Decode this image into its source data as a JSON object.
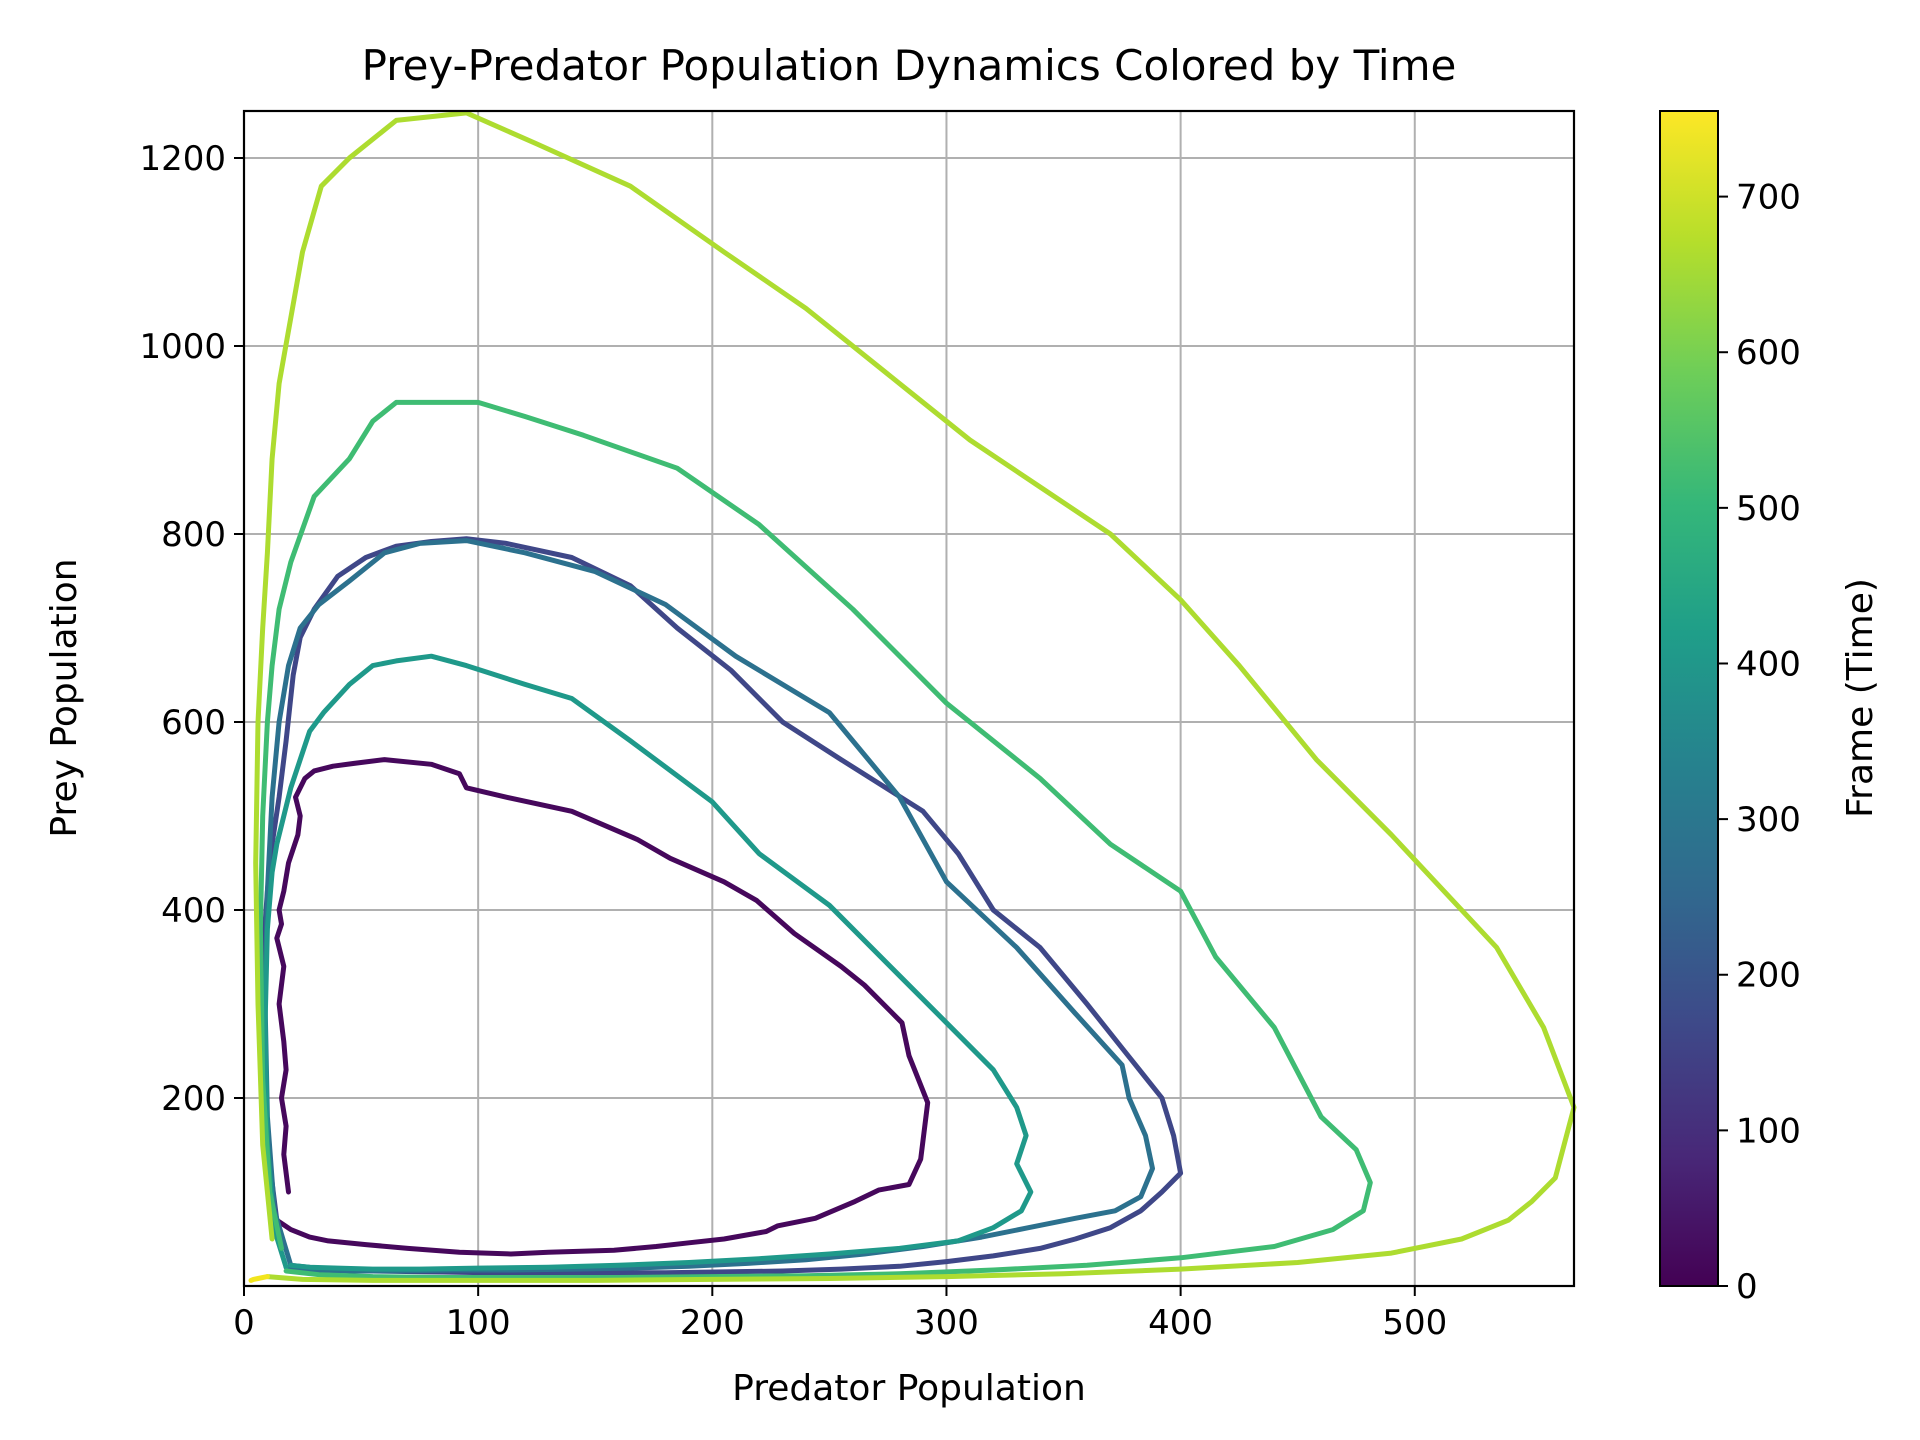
{
  "chart_data": {
    "type": "line",
    "title": "Prey-Predator Population Dynamics Colored by Time",
    "xlabel": "Predator Population",
    "ylabel": "Prey Population",
    "xlim": [
      0,
      568
    ],
    "ylim": [
      0,
      1250
    ],
    "xticks": [
      0,
      100,
      200,
      300,
      400,
      500
    ],
    "yticks": [
      200,
      400,
      600,
      800,
      1000,
      1200
    ],
    "grid": true,
    "colorbar": {
      "label": "Frame (Time)",
      "range": [
        0,
        755
      ],
      "ticks": [
        0,
        100,
        200,
        300,
        400,
        500,
        600,
        700
      ],
      "colormap": "viridis",
      "stops": [
        "#440154",
        "#482878",
        "#3e4989",
        "#31688e",
        "#26828e",
        "#1f9e89",
        "#35b779",
        "#6ece58",
        "#b5de2b",
        "#fde725"
      ]
    },
    "series": [
      {
        "frame_start": 0,
        "frame_end": 95,
        "color": "#46085c",
        "x": [
          19,
          17,
          18,
          16,
          18,
          17,
          15,
          17,
          14,
          16,
          15,
          17,
          19,
          23,
          24,
          22,
          26,
          30,
          38,
          47,
          60,
          80,
          92,
          95,
          112,
          140,
          168,
          182,
          205,
          219,
          235,
          255,
          265,
          281,
          284,
          292,
          289,
          284,
          271,
          261,
          244,
          228,
          223,
          205,
          190,
          176,
          158,
          130,
          114,
          92,
          70,
          52,
          36,
          28,
          20,
          14
        ],
        "y": [
          100,
          140,
          170,
          200,
          230,
          260,
          300,
          340,
          370,
          385,
          400,
          420,
          450,
          480,
          500,
          520,
          540,
          548,
          553,
          556,
          560,
          555,
          545,
          530,
          520,
          505,
          475,
          455,
          430,
          410,
          375,
          340,
          320,
          280,
          245,
          195,
          135,
          108,
          102,
          90,
          72,
          64,
          58,
          50,
          46,
          42,
          38,
          36,
          34,
          36,
          40,
          44,
          48,
          52,
          60,
          70
        ]
      },
      {
        "frame_start": 95,
        "frame_end": 220,
        "color": "#3f4788",
        "x": [
          14,
          10,
          8,
          8,
          10,
          12,
          15,
          18,
          21,
          24,
          30,
          40,
          52,
          65,
          80,
          95,
          112,
          140,
          165,
          185,
          208,
          230,
          255,
          290,
          305,
          320,
          340,
          360,
          376,
          392,
          397,
          400,
          392,
          383,
          370,
          355,
          340,
          320,
          300,
          280,
          255,
          230,
          205,
          180,
          155,
          130,
          105,
          80,
          55,
          35,
          20
        ],
        "y": [
          70,
          150,
          250,
          350,
          420,
          470,
          520,
          580,
          650,
          690,
          720,
          755,
          775,
          787,
          792,
          795,
          790,
          775,
          745,
          700,
          655,
          600,
          560,
          505,
          460,
          400,
          360,
          300,
          250,
          200,
          160,
          120,
          100,
          80,
          62,
          50,
          40,
          32,
          26,
          21,
          18,
          16,
          15,
          14,
          14,
          14,
          14,
          15,
          16,
          18,
          22
        ]
      },
      {
        "frame_start": 220,
        "frame_end": 320,
        "color": "#2c718e",
        "x": [
          20,
          13,
          10,
          9,
          10,
          12,
          15,
          19,
          24,
          32,
          45,
          60,
          75,
          95,
          120,
          150,
          180,
          210,
          250,
          280,
          300,
          330,
          355,
          375,
          378,
          385,
          388,
          383,
          372,
          355,
          335,
          315,
          290,
          265,
          240,
          215,
          190,
          165,
          140,
          115,
          90,
          65,
          45,
          30,
          22,
          18
        ],
        "y": [
          22,
          80,
          180,
          300,
          420,
          520,
          600,
          660,
          700,
          725,
          750,
          780,
          790,
          793,
          780,
          760,
          725,
          670,
          610,
          520,
          430,
          360,
          290,
          235,
          200,
          160,
          125,
          95,
          80,
          72,
          62,
          52,
          42,
          34,
          28,
          24,
          21,
          19,
          18,
          17,
          17,
          16,
          16,
          17,
          18,
          20
        ]
      },
      {
        "frame_start": 320,
        "frame_end": 430,
        "color": "#1f998a",
        "x": [
          18,
          13,
          10,
          9,
          10,
          12,
          14,
          17,
          20,
          24,
          28,
          34,
          45,
          55,
          65,
          80,
          95,
          120,
          140,
          165,
          200,
          220,
          250,
          280,
          300,
          320,
          330,
          334,
          330,
          336,
          332,
          320,
          305,
          280,
          250,
          220,
          190,
          160,
          130,
          100,
          75,
          55,
          40,
          28,
          20
        ],
        "y": [
          20,
          60,
          150,
          280,
          380,
          440,
          470,
          500,
          530,
          560,
          590,
          610,
          640,
          660,
          665,
          670,
          660,
          640,
          625,
          580,
          515,
          460,
          405,
          330,
          280,
          230,
          190,
          160,
          130,
          100,
          80,
          62,
          48,
          40,
          34,
          29,
          25,
          22,
          20,
          19,
          18,
          18,
          19,
          20,
          22
        ]
      },
      {
        "frame_start": 430,
        "frame_end": 560,
        "color": "#3fbc73",
        "x": [
          16,
          11,
          8,
          7,
          8,
          10,
          12,
          15,
          20,
          30,
          45,
          55,
          65,
          80,
          100,
          120,
          145,
          185,
          220,
          260,
          300,
          340,
          370,
          400,
          415,
          440,
          460,
          475,
          481,
          478,
          465,
          440,
          400,
          360,
          320,
          280,
          240,
          200,
          160,
          120,
          85,
          55,
          32,
          18
        ],
        "y": [
          40,
          100,
          220,
          380,
          500,
          600,
          660,
          720,
          770,
          840,
          880,
          920,
          940,
          940,
          940,
          925,
          905,
          870,
          810,
          720,
          620,
          540,
          470,
          420,
          350,
          275,
          180,
          145,
          110,
          80,
          60,
          42,
          30,
          22,
          17,
          13,
          11,
          10,
          9,
          9,
          9,
          10,
          12,
          16
        ]
      },
      {
        "frame_start": 560,
        "frame_end": 700,
        "color": "#addc30",
        "x": [
          12,
          8,
          6,
          5,
          6,
          8,
          10,
          12,
          15,
          20,
          25,
          33,
          45,
          65,
          95,
          125,
          165,
          205,
          240,
          285,
          310,
          340,
          370,
          400,
          425,
          458,
          490,
          535,
          555,
          568,
          560,
          550,
          540,
          520,
          490,
          450,
          400,
          350,
          300,
          250,
          200,
          150,
          100,
          55,
          25,
          10
        ],
        "y": [
          50,
          150,
          300,
          450,
          600,
          700,
          780,
          880,
          960,
          1030,
          1100,
          1170,
          1200,
          1240,
          1248,
          1215,
          1170,
          1100,
          1040,
          950,
          900,
          850,
          800,
          730,
          660,
          560,
          480,
          360,
          275,
          190,
          115,
          90,
          70,
          50,
          35,
          25,
          18,
          13,
          10,
          8,
          7,
          6,
          6,
          6,
          7,
          10
        ]
      },
      {
        "frame_start": 700,
        "frame_end": 755,
        "color": "#f2e51d",
        "x": [
          10,
          6,
          4,
          3
        ],
        "y": [
          10,
          8,
          7,
          6
        ]
      }
    ]
  }
}
